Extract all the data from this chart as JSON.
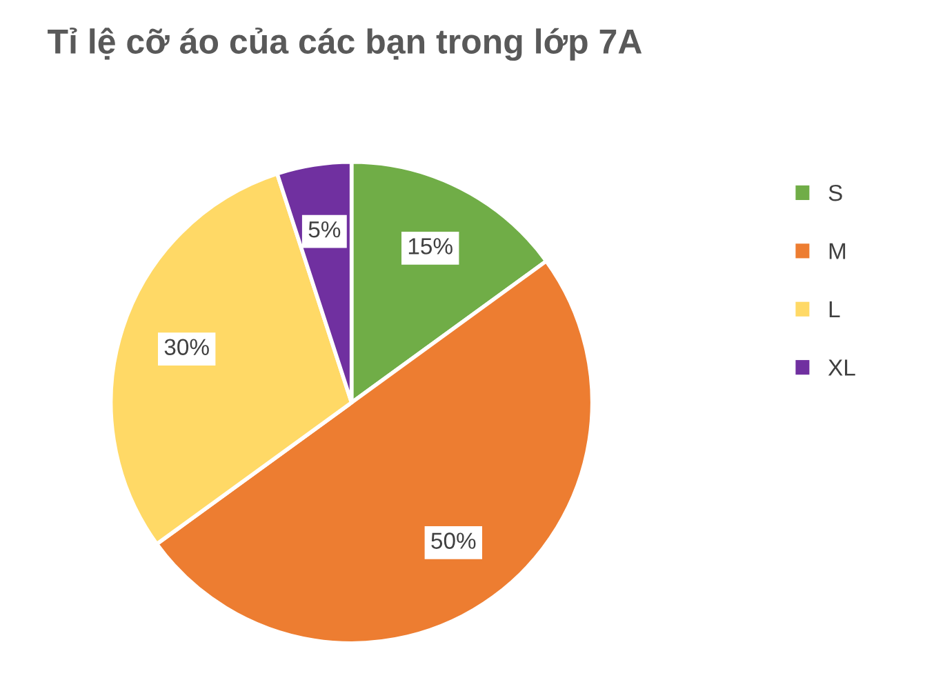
{
  "chart_data": {
    "type": "pie",
    "title": "Tỉ lệ cỡ áo của các bạn trong lớp 7A",
    "categories": [
      "S",
      "M",
      "L",
      "XL"
    ],
    "values": [
      15,
      50,
      30,
      5
    ],
    "colors": [
      "#70ad47",
      "#ed7d31",
      "#ffd966",
      "#7030a0"
    ],
    "value_labels": [
      "15%",
      "50%",
      "30%",
      "5%"
    ],
    "legend": "right"
  }
}
